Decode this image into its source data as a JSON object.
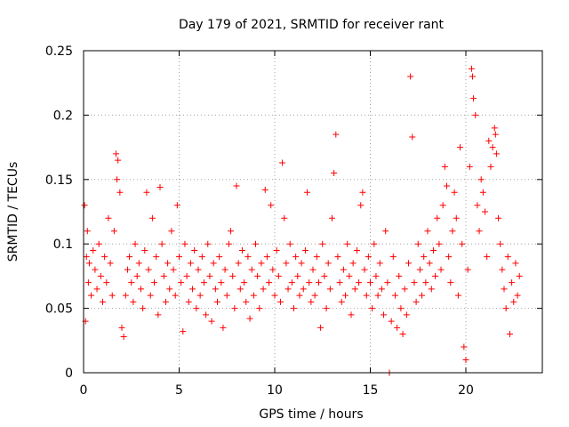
{
  "chart_data": {
    "type": "scatter",
    "title": "Day 179 of 2021, SRMTID for receiver rant",
    "xlabel": "GPS time / hours",
    "ylabel": "SRMTID / TECUs",
    "xlim": [
      0,
      24
    ],
    "ylim": [
      0,
      0.25
    ],
    "xticks": [
      0,
      5,
      10,
      15,
      20
    ],
    "xtick_labels": [
      "0",
      "5",
      "10",
      "15",
      "20"
    ],
    "yticks": [
      0,
      0.05,
      0.1,
      0.15,
      0.2,
      0.25
    ],
    "ytick_labels": [
      "0",
      "0.05",
      "0.1",
      "0.15",
      "0.2",
      "0.25"
    ],
    "grid": true,
    "marker": "+",
    "color": "#ff0000",
    "series": [
      {
        "name": "SRMTID",
        "points": [
          [
            0.05,
            0.13
          ],
          [
            0.1,
            0.04
          ],
          [
            0.15,
            0.09
          ],
          [
            0.2,
            0.11
          ],
          [
            0.25,
            0.07
          ],
          [
            0.3,
            0.085
          ],
          [
            0.4,
            0.06
          ],
          [
            0.5,
            0.095
          ],
          [
            0.6,
            0.08
          ],
          [
            0.7,
            0.065
          ],
          [
            0.8,
            0.1
          ],
          [
            0.9,
            0.075
          ],
          [
            1.0,
            0.055
          ],
          [
            1.1,
            0.09
          ],
          [
            1.2,
            0.07
          ],
          [
            1.3,
            0.12
          ],
          [
            1.4,
            0.085
          ],
          [
            1.5,
            0.06
          ],
          [
            1.6,
            0.11
          ],
          [
            1.7,
            0.17
          ],
          [
            1.75,
            0.15
          ],
          [
            1.8,
            0.165
          ],
          [
            1.9,
            0.14
          ],
          [
            2.0,
            0.035
          ],
          [
            2.1,
            0.028
          ],
          [
            2.2,
            0.06
          ],
          [
            2.3,
            0.08
          ],
          [
            2.4,
            0.09
          ],
          [
            2.5,
            0.07
          ],
          [
            2.6,
            0.055
          ],
          [
            2.7,
            0.1
          ],
          [
            2.8,
            0.075
          ],
          [
            2.9,
            0.085
          ],
          [
            3.0,
            0.065
          ],
          [
            3.1,
            0.05
          ],
          [
            3.2,
            0.095
          ],
          [
            3.3,
            0.14
          ],
          [
            3.4,
            0.08
          ],
          [
            3.5,
            0.06
          ],
          [
            3.6,
            0.12
          ],
          [
            3.7,
            0.07
          ],
          [
            3.8,
            0.09
          ],
          [
            3.9,
            0.045
          ],
          [
            4.0,
            0.144
          ],
          [
            4.1,
            0.1
          ],
          [
            4.2,
            0.075
          ],
          [
            4.3,
            0.055
          ],
          [
            4.4,
            0.085
          ],
          [
            4.5,
            0.065
          ],
          [
            4.6,
            0.11
          ],
          [
            4.7,
            0.08
          ],
          [
            4.8,
            0.06
          ],
          [
            4.9,
            0.13
          ],
          [
            5.0,
            0.09
          ],
          [
            5.1,
            0.07
          ],
          [
            5.2,
            0.032
          ],
          [
            5.3,
            0.1
          ],
          [
            5.4,
            0.075
          ],
          [
            5.5,
            0.055
          ],
          [
            5.6,
            0.085
          ],
          [
            5.7,
            0.065
          ],
          [
            5.8,
            0.095
          ],
          [
            5.9,
            0.05
          ],
          [
            6.0,
            0.08
          ],
          [
            6.1,
            0.06
          ],
          [
            6.2,
            0.09
          ],
          [
            6.3,
            0.07
          ],
          [
            6.4,
            0.045
          ],
          [
            6.5,
            0.1
          ],
          [
            6.6,
            0.075
          ],
          [
            6.7,
            0.04
          ],
          [
            6.8,
            0.085
          ],
          [
            6.9,
            0.065
          ],
          [
            7.0,
            0.055
          ],
          [
            7.1,
            0.09
          ],
          [
            7.2,
            0.07
          ],
          [
            7.3,
            0.035
          ],
          [
            7.4,
            0.08
          ],
          [
            7.5,
            0.06
          ],
          [
            7.6,
            0.1
          ],
          [
            7.7,
            0.11
          ],
          [
            7.8,
            0.075
          ],
          [
            7.9,
            0.05
          ],
          [
            8.0,
            0.145
          ],
          [
            8.1,
            0.085
          ],
          [
            8.2,
            0.065
          ],
          [
            8.3,
            0.095
          ],
          [
            8.4,
            0.07
          ],
          [
            8.5,
            0.055
          ],
          [
            8.6,
            0.09
          ],
          [
            8.7,
            0.042
          ],
          [
            8.8,
            0.08
          ],
          [
            8.9,
            0.06
          ],
          [
            9.0,
            0.1
          ],
          [
            9.1,
            0.075
          ],
          [
            9.2,
            0.05
          ],
          [
            9.3,
            0.085
          ],
          [
            9.4,
            0.065
          ],
          [
            9.5,
            0.142
          ],
          [
            9.6,
            0.09
          ],
          [
            9.7,
            0.07
          ],
          [
            9.8,
            0.13
          ],
          [
            9.9,
            0.08
          ],
          [
            10.0,
            0.06
          ],
          [
            10.1,
            0.095
          ],
          [
            10.2,
            0.075
          ],
          [
            10.3,
            0.055
          ],
          [
            10.4,
            0.163
          ],
          [
            10.5,
            0.12
          ],
          [
            10.6,
            0.085
          ],
          [
            10.7,
            0.065
          ],
          [
            10.8,
            0.1
          ],
          [
            10.9,
            0.07
          ],
          [
            11.0,
            0.05
          ],
          [
            11.1,
            0.09
          ],
          [
            11.2,
            0.075
          ],
          [
            11.3,
            0.06
          ],
          [
            11.4,
            0.085
          ],
          [
            11.5,
            0.065
          ],
          [
            11.6,
            0.095
          ],
          [
            11.7,
            0.14
          ],
          [
            11.8,
            0.07
          ],
          [
            11.9,
            0.055
          ],
          [
            12.0,
            0.08
          ],
          [
            12.1,
            0.06
          ],
          [
            12.2,
            0.09
          ],
          [
            12.3,
            0.07
          ],
          [
            12.4,
            0.035
          ],
          [
            12.5,
            0.1
          ],
          [
            12.6,
            0.075
          ],
          [
            12.7,
            0.05
          ],
          [
            12.8,
            0.085
          ],
          [
            12.9,
            0.065
          ],
          [
            13.0,
            0.12
          ],
          [
            13.1,
            0.155
          ],
          [
            13.2,
            0.185
          ],
          [
            13.3,
            0.09
          ],
          [
            13.4,
            0.07
          ],
          [
            13.5,
            0.055
          ],
          [
            13.6,
            0.08
          ],
          [
            13.7,
            0.06
          ],
          [
            13.8,
            0.1
          ],
          [
            13.9,
            0.075
          ],
          [
            14.0,
            0.045
          ],
          [
            14.1,
            0.085
          ],
          [
            14.2,
            0.065
          ],
          [
            14.3,
            0.095
          ],
          [
            14.4,
            0.07
          ],
          [
            14.5,
            0.13
          ],
          [
            14.6,
            0.14
          ],
          [
            14.7,
            0.08
          ],
          [
            14.8,
            0.06
          ],
          [
            14.9,
            0.09
          ],
          [
            15.0,
            0.07
          ],
          [
            15.1,
            0.05
          ],
          [
            15.2,
            0.1
          ],
          [
            15.3,
            0.075
          ],
          [
            15.4,
            0.06
          ],
          [
            15.5,
            0.085
          ],
          [
            15.6,
            0.065
          ],
          [
            15.7,
            0.045
          ],
          [
            15.8,
            0.11
          ],
          [
            15.9,
            0.07
          ],
          [
            16.0,
            0.0
          ],
          [
            16.1,
            0.04
          ],
          [
            16.2,
            0.09
          ],
          [
            16.3,
            0.06
          ],
          [
            16.4,
            0.035
          ],
          [
            16.5,
            0.075
          ],
          [
            16.6,
            0.05
          ],
          [
            16.7,
            0.03
          ],
          [
            16.8,
            0.065
          ],
          [
            16.9,
            0.045
          ],
          [
            17.0,
            0.085
          ],
          [
            17.1,
            0.23
          ],
          [
            17.2,
            0.183
          ],
          [
            17.3,
            0.07
          ],
          [
            17.4,
            0.055
          ],
          [
            17.5,
            0.1
          ],
          [
            17.6,
            0.08
          ],
          [
            17.7,
            0.06
          ],
          [
            17.8,
            0.09
          ],
          [
            17.9,
            0.07
          ],
          [
            18.0,
            0.11
          ],
          [
            18.1,
            0.085
          ],
          [
            18.2,
            0.065
          ],
          [
            18.3,
            0.095
          ],
          [
            18.4,
            0.075
          ],
          [
            18.5,
            0.12
          ],
          [
            18.6,
            0.1
          ],
          [
            18.7,
            0.08
          ],
          [
            18.8,
            0.13
          ],
          [
            18.9,
            0.16
          ],
          [
            19.0,
            0.145
          ],
          [
            19.1,
            0.09
          ],
          [
            19.2,
            0.07
          ],
          [
            19.3,
            0.11
          ],
          [
            19.4,
            0.14
          ],
          [
            19.5,
            0.12
          ],
          [
            19.6,
            0.06
          ],
          [
            19.7,
            0.175
          ],
          [
            19.8,
            0.1
          ],
          [
            19.9,
            0.02
          ],
          [
            20.0,
            0.01
          ],
          [
            20.1,
            0.08
          ],
          [
            20.2,
            0.16
          ],
          [
            20.3,
            0.236
          ],
          [
            20.35,
            0.23
          ],
          [
            20.4,
            0.213
          ],
          [
            20.5,
            0.2
          ],
          [
            20.6,
            0.13
          ],
          [
            20.7,
            0.11
          ],
          [
            20.8,
            0.15
          ],
          [
            20.9,
            0.14
          ],
          [
            21.0,
            0.125
          ],
          [
            21.1,
            0.09
          ],
          [
            21.2,
            0.18
          ],
          [
            21.3,
            0.16
          ],
          [
            21.4,
            0.175
          ],
          [
            21.5,
            0.19
          ],
          [
            21.55,
            0.185
          ],
          [
            21.6,
            0.17
          ],
          [
            21.7,
            0.12
          ],
          [
            21.8,
            0.1
          ],
          [
            21.9,
            0.08
          ],
          [
            22.0,
            0.065
          ],
          [
            22.1,
            0.05
          ],
          [
            22.2,
            0.09
          ],
          [
            22.3,
            0.03
          ],
          [
            22.4,
            0.07
          ],
          [
            22.5,
            0.055
          ],
          [
            22.6,
            0.085
          ],
          [
            22.7,
            0.06
          ],
          [
            22.8,
            0.075
          ]
        ]
      }
    ]
  }
}
